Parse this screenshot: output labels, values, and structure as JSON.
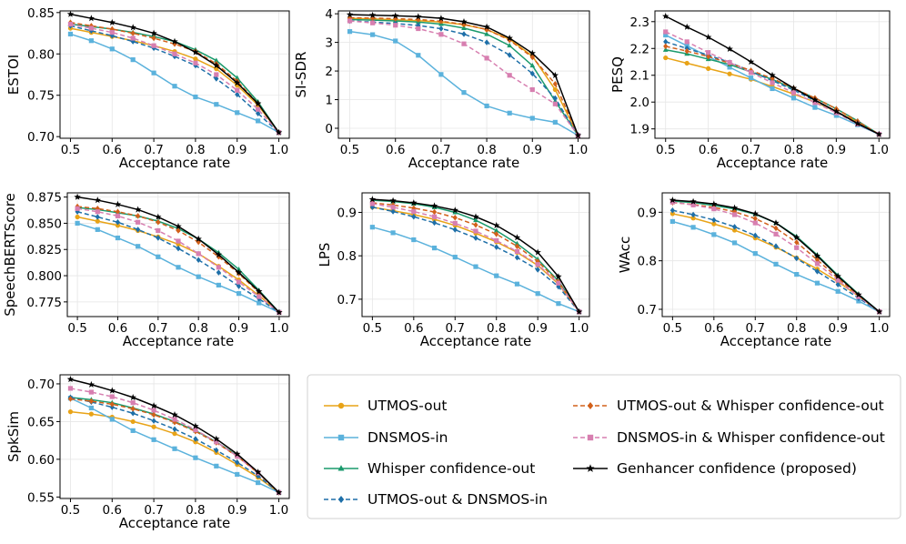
{
  "legend": {
    "placement": "bottom-right",
    "columns": 2
  },
  "series_styles": [
    {
      "name": "UTMOS-out",
      "color": "#e8a317",
      "marker": "circle",
      "dash": "solid"
    },
    {
      "name": "DNSMOS-in",
      "color": "#5bb2dc",
      "marker": "square",
      "dash": "solid"
    },
    {
      "name": "Whisper confidence-out",
      "color": "#1a9a6c",
      "marker": "triangle",
      "dash": "solid"
    },
    {
      "name": "UTMOS-out & DNSMOS-in",
      "color": "#1e6fa8",
      "marker": "diamond",
      "dash": "dashed"
    },
    {
      "name": "UTMOS-out & Whisper confidence-out",
      "color": "#d2601a",
      "marker": "diamond",
      "dash": "dashed"
    },
    {
      "name": "DNSMOS-in & Whisper confidence-out",
      "color": "#d77fb0",
      "marker": "square",
      "dash": "dashed"
    },
    {
      "name": "Genhancer confidence (proposed)",
      "color": "#000000",
      "marker": "star",
      "dash": "solid"
    }
  ],
  "chart_data": [
    {
      "type": "line",
      "id": "estoi",
      "xlabel": "Acceptance rate",
      "ylabel": "ESTOI",
      "xlim": [
        0.475,
        1.025
      ],
      "ylim": [
        0.698,
        0.852
      ],
      "grid": true,
      "x": [
        0.5,
        0.55,
        0.6,
        0.65,
        0.7,
        0.75,
        0.8,
        0.85,
        0.9,
        0.95,
        1.0
      ],
      "xticks": [
        "0.5",
        "0.6",
        "0.7",
        "0.8",
        "0.9",
        "1.0"
      ],
      "yticks": [
        "0.70",
        "0.75",
        "0.80",
        "0.85"
      ],
      "series": [
        {
          "values": [
            0.831,
            0.826,
            0.821,
            0.816,
            0.81,
            0.803,
            0.794,
            0.782,
            0.762,
            0.738,
            0.705
          ]
        },
        {
          "values": [
            0.824,
            0.816,
            0.806,
            0.793,
            0.777,
            0.761,
            0.748,
            0.739,
            0.729,
            0.719,
            0.705
          ]
        },
        {
          "values": [
            0.836,
            0.833,
            0.83,
            0.826,
            0.821,
            0.815,
            0.805,
            0.792,
            0.771,
            0.742,
            0.705
          ]
        },
        {
          "values": [
            0.834,
            0.828,
            0.822,
            0.815,
            0.807,
            0.797,
            0.786,
            0.77,
            0.751,
            0.728,
            0.705
          ]
        },
        {
          "values": [
            0.838,
            0.834,
            0.83,
            0.825,
            0.819,
            0.812,
            0.803,
            0.788,
            0.767,
            0.74,
            0.705
          ]
        },
        {
          "values": [
            0.836,
            0.831,
            0.826,
            0.819,
            0.81,
            0.8,
            0.789,
            0.775,
            0.756,
            0.733,
            0.705
          ]
        },
        {
          "values": [
            0.848,
            0.843,
            0.838,
            0.832,
            0.825,
            0.815,
            0.802,
            0.786,
            0.765,
            0.74,
            0.705
          ]
        }
      ]
    },
    {
      "type": "line",
      "id": "sisdr",
      "xlabel": "Acceptance rate",
      "ylabel": "SI-SDR",
      "xlim": [
        0.475,
        1.025
      ],
      "ylim": [
        -0.35,
        4.1
      ],
      "grid": true,
      "x": [
        0.5,
        0.55,
        0.6,
        0.65,
        0.7,
        0.75,
        0.8,
        0.85,
        0.9,
        0.95,
        1.0
      ],
      "xticks": [
        "0.5",
        "0.6",
        "0.7",
        "0.8",
        "0.9",
        "1.0"
      ],
      "yticks": [
        "0",
        "1",
        "2",
        "3",
        "4"
      ],
      "series": [
        {
          "values": [
            3.84,
            3.82,
            3.79,
            3.76,
            3.71,
            3.62,
            3.45,
            3.11,
            2.52,
            1.35,
            -0.25
          ]
        },
        {
          "values": [
            3.38,
            3.27,
            3.05,
            2.55,
            1.88,
            1.25,
            0.78,
            0.53,
            0.35,
            0.21,
            -0.25
          ]
        },
        {
          "values": [
            3.8,
            3.78,
            3.75,
            3.71,
            3.64,
            3.5,
            3.29,
            2.89,
            2.19,
            0.95,
            -0.25
          ]
        },
        {
          "values": [
            3.75,
            3.71,
            3.66,
            3.59,
            3.48,
            3.29,
            3.0,
            2.56,
            1.91,
            1.05,
            -0.25
          ]
        },
        {
          "values": [
            3.86,
            3.85,
            3.83,
            3.8,
            3.74,
            3.63,
            3.45,
            3.08,
            2.48,
            1.55,
            -0.25
          ]
        },
        {
          "values": [
            3.75,
            3.68,
            3.6,
            3.48,
            3.28,
            2.95,
            2.45,
            1.85,
            1.35,
            0.85,
            -0.25
          ]
        },
        {
          "values": [
            3.97,
            3.95,
            3.93,
            3.9,
            3.84,
            3.72,
            3.54,
            3.15,
            2.62,
            1.85,
            -0.25
          ]
        }
      ]
    },
    {
      "type": "line",
      "id": "pesq",
      "xlabel": "Acceptance rate",
      "ylabel": "PESQ",
      "xlim": [
        0.475,
        1.025
      ],
      "ylim": [
        1.865,
        2.34
      ],
      "grid": true,
      "x": [
        0.5,
        0.55,
        0.6,
        0.65,
        0.7,
        0.75,
        0.8,
        0.85,
        0.9,
        0.95,
        1.0
      ],
      "xticks": [
        "0.5",
        "0.6",
        "0.7",
        "0.8",
        "0.9",
        "1.0"
      ],
      "yticks": [
        "1.9",
        "2.0",
        "2.1",
        "2.2",
        "2.3"
      ],
      "series": [
        {
          "values": [
            2.165,
            2.145,
            2.125,
            2.105,
            2.085,
            2.058,
            2.03,
            2.0,
            1.965,
            1.925,
            1.88
          ]
        },
        {
          "values": [
            2.25,
            2.21,
            2.17,
            2.13,
            2.09,
            2.05,
            2.015,
            1.98,
            1.95,
            1.915,
            1.88
          ]
        },
        {
          "values": [
            2.195,
            2.18,
            2.16,
            2.14,
            2.112,
            2.085,
            2.05,
            2.015,
            1.975,
            1.93,
            1.88
          ]
        },
        {
          "values": [
            2.225,
            2.2,
            2.175,
            2.148,
            2.115,
            2.08,
            2.045,
            2.005,
            1.965,
            1.92,
            1.88
          ]
        },
        {
          "values": [
            2.208,
            2.19,
            2.17,
            2.145,
            2.118,
            2.088,
            2.052,
            2.015,
            1.975,
            1.928,
            1.88
          ]
        },
        {
          "values": [
            2.262,
            2.225,
            2.185,
            2.148,
            2.11,
            2.072,
            2.035,
            1.998,
            1.96,
            1.918,
            1.88
          ]
        },
        {
          "values": [
            2.32,
            2.28,
            2.242,
            2.198,
            2.15,
            2.1,
            2.052,
            2.008,
            1.965,
            1.92,
            1.88
          ]
        }
      ]
    },
    {
      "type": "line",
      "id": "speechbertscore",
      "xlabel": "Acceptance rate",
      "ylabel": "SpeechBERTScore",
      "xlim": [
        0.475,
        1.025
      ],
      "ylim": [
        0.761,
        0.879
      ],
      "grid": true,
      "x": [
        0.5,
        0.55,
        0.6,
        0.65,
        0.7,
        0.75,
        0.8,
        0.85,
        0.9,
        0.95,
        1.0
      ],
      "xticks": [
        "0.5",
        "0.6",
        "0.7",
        "0.8",
        "0.9",
        "1.0"
      ],
      "yticks": [
        "0.775",
        "0.800",
        "0.825",
        "0.850",
        "0.875"
      ],
      "series": [
        {
          "values": [
            0.856,
            0.852,
            0.848,
            0.843,
            0.837,
            0.83,
            0.821,
            0.809,
            0.796,
            0.781,
            0.765
          ]
        },
        {
          "values": [
            0.85,
            0.844,
            0.836,
            0.828,
            0.818,
            0.808,
            0.799,
            0.791,
            0.783,
            0.774,
            0.765
          ]
        },
        {
          "values": [
            0.865,
            0.863,
            0.86,
            0.857,
            0.852,
            0.845,
            0.835,
            0.822,
            0.806,
            0.786,
            0.765
          ]
        },
        {
          "values": [
            0.861,
            0.856,
            0.851,
            0.844,
            0.836,
            0.826,
            0.815,
            0.803,
            0.79,
            0.778,
            0.765
          ]
        },
        {
          "values": [
            0.866,
            0.864,
            0.861,
            0.857,
            0.851,
            0.843,
            0.832,
            0.818,
            0.802,
            0.784,
            0.765
          ]
        },
        {
          "values": [
            0.864,
            0.861,
            0.857,
            0.851,
            0.843,
            0.833,
            0.821,
            0.808,
            0.794,
            0.78,
            0.765
          ]
        },
        {
          "values": [
            0.875,
            0.872,
            0.868,
            0.863,
            0.856,
            0.847,
            0.835,
            0.82,
            0.803,
            0.785,
            0.765
          ]
        }
      ]
    },
    {
      "type": "line",
      "id": "lps",
      "xlabel": "Acceptance rate",
      "ylabel": "LPS",
      "xlim": [
        0.475,
        1.025
      ],
      "ylim": [
        0.66,
        0.945
      ],
      "grid": true,
      "x": [
        0.5,
        0.55,
        0.6,
        0.65,
        0.7,
        0.75,
        0.8,
        0.85,
        0.9,
        0.95,
        1.0
      ],
      "xticks": [
        "0.5",
        "0.6",
        "0.7",
        "0.8",
        "0.9",
        "1.0"
      ],
      "yticks": [
        "0.7",
        "0.8",
        "0.9"
      ],
      "series": [
        {
          "values": [
            0.912,
            0.904,
            0.895,
            0.884,
            0.87,
            0.852,
            0.832,
            0.808,
            0.778,
            0.735,
            0.671
          ]
        },
        {
          "values": [
            0.866,
            0.853,
            0.837,
            0.818,
            0.797,
            0.775,
            0.754,
            0.735,
            0.713,
            0.69,
            0.671
          ]
        },
        {
          "values": [
            0.928,
            0.925,
            0.92,
            0.912,
            0.9,
            0.882,
            0.858,
            0.828,
            0.792,
            0.742,
            0.671
          ]
        },
        {
          "values": [
            0.912,
            0.902,
            0.89,
            0.876,
            0.86,
            0.841,
            0.82,
            0.796,
            0.768,
            0.729,
            0.671
          ]
        },
        {
          "values": [
            0.922,
            0.917,
            0.91,
            0.901,
            0.888,
            0.871,
            0.85,
            0.822,
            0.787,
            0.74,
            0.671
          ]
        },
        {
          "values": [
            0.92,
            0.912,
            0.902,
            0.89,
            0.875,
            0.857,
            0.835,
            0.81,
            0.78,
            0.737,
            0.671
          ]
        },
        {
          "values": [
            0.93,
            0.927,
            0.922,
            0.915,
            0.905,
            0.89,
            0.87,
            0.842,
            0.808,
            0.752,
            0.671
          ]
        }
      ]
    },
    {
      "type": "line",
      "id": "wacc",
      "xlabel": "Acceptance rate",
      "ylabel": "WAcc",
      "xlim": [
        0.475,
        1.025
      ],
      "ylim": [
        0.685,
        0.94
      ],
      "grid": true,
      "x": [
        0.5,
        0.55,
        0.6,
        0.65,
        0.7,
        0.75,
        0.8,
        0.85,
        0.9,
        0.95,
        1.0
      ],
      "xticks": [
        "0.5",
        "0.6",
        "0.7",
        "0.8",
        "0.9",
        "1.0"
      ],
      "yticks": [
        "0.7",
        "0.8",
        "0.9"
      ],
      "series": [
        {
          "values": [
            0.897,
            0.888,
            0.876,
            0.863,
            0.847,
            0.828,
            0.806,
            0.783,
            0.757,
            0.727,
            0.695
          ]
        },
        {
          "values": [
            0.881,
            0.869,
            0.854,
            0.837,
            0.815,
            0.793,
            0.772,
            0.754,
            0.737,
            0.717,
            0.695
          ]
        },
        {
          "values": [
            0.923,
            0.92,
            0.914,
            0.907,
            0.896,
            0.878,
            0.85,
            0.812,
            0.77,
            0.731,
            0.695
          ]
        },
        {
          "values": [
            0.904,
            0.895,
            0.884,
            0.87,
            0.852,
            0.83,
            0.805,
            0.778,
            0.751,
            0.723,
            0.695
          ]
        },
        {
          "values": [
            0.92,
            0.916,
            0.91,
            0.901,
            0.887,
            0.867,
            0.838,
            0.802,
            0.764,
            0.728,
            0.695
          ]
        },
        {
          "values": [
            0.921,
            0.915,
            0.907,
            0.895,
            0.878,
            0.855,
            0.827,
            0.794,
            0.76,
            0.726,
            0.695
          ]
        },
        {
          "values": [
            0.925,
            0.922,
            0.917,
            0.909,
            0.897,
            0.878,
            0.848,
            0.81,
            0.768,
            0.73,
            0.695
          ]
        }
      ]
    },
    {
      "type": "line",
      "id": "spksim",
      "xlabel": "Acceptance rate",
      "ylabel": "SpkSim",
      "xlim": [
        0.475,
        1.025
      ],
      "ylim": [
        0.548,
        0.712
      ],
      "grid": true,
      "x": [
        0.5,
        0.55,
        0.6,
        0.65,
        0.7,
        0.75,
        0.8,
        0.85,
        0.9,
        0.95,
        1.0
      ],
      "xticks": [
        "0.5",
        "0.6",
        "0.7",
        "0.8",
        "0.9",
        "1.0"
      ],
      "yticks": [
        "0.55",
        "0.60",
        "0.65",
        "0.70"
      ],
      "series": [
        {
          "values": [
            0.663,
            0.66,
            0.656,
            0.65,
            0.643,
            0.634,
            0.623,
            0.609,
            0.593,
            0.576,
            0.556
          ]
        },
        {
          "values": [
            0.681,
            0.668,
            0.653,
            0.638,
            0.626,
            0.614,
            0.602,
            0.591,
            0.58,
            0.569,
            0.556
          ]
        },
        {
          "values": [
            0.682,
            0.679,
            0.675,
            0.668,
            0.66,
            0.65,
            0.638,
            0.623,
            0.605,
            0.582,
            0.556
          ]
        },
        {
          "values": [
            0.682,
            0.676,
            0.669,
            0.661,
            0.651,
            0.64,
            0.627,
            0.612,
            0.596,
            0.578,
            0.556
          ]
        },
        {
          "values": [
            0.68,
            0.677,
            0.673,
            0.667,
            0.659,
            0.649,
            0.637,
            0.622,
            0.604,
            0.582,
            0.556
          ]
        },
        {
          "values": [
            0.694,
            0.689,
            0.683,
            0.675,
            0.665,
            0.653,
            0.639,
            0.623,
            0.604,
            0.582,
            0.556
          ]
        },
        {
          "values": [
            0.706,
            0.699,
            0.691,
            0.682,
            0.671,
            0.659,
            0.644,
            0.627,
            0.607,
            0.583,
            0.556
          ]
        }
      ]
    }
  ]
}
